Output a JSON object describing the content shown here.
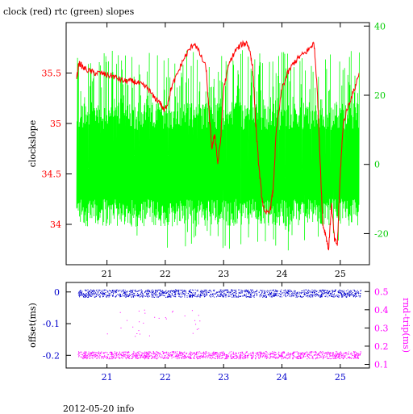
{
  "title": "clock (red) rtc (green) slopes",
  "footer": "2012-05-20 info",
  "colors": {
    "clock": "#ff0000",
    "rtc": "#00ff00",
    "offset": "#0000cc",
    "rndtrip": "#ff00ff",
    "axis": "#000000",
    "right_axis_top": "#00cc00",
    "right_axis_bottom": "#cc00cc"
  },
  "chart_data": [
    {
      "type": "line",
      "title": "clock (red) rtc (green) slopes",
      "xlabel": "",
      "x_ticks": [
        "21",
        "22",
        "23",
        "24",
        "25"
      ],
      "x_tick_values": [
        21,
        22,
        23,
        24,
        25
      ],
      "xlim": [
        20.3,
        25.5
      ],
      "ylabel": "clockslope",
      "y_ticks": [
        "34",
        "34.5",
        "35",
        "35.5"
      ],
      "y_tick_values": [
        34,
        34.5,
        35,
        35.5
      ],
      "ylim": [
        33.6,
        36.0
      ],
      "y2_ticks": [
        "-20",
        "0",
        "20",
        "40"
      ],
      "y2_tick_values": [
        -20,
        0,
        20,
        40
      ],
      "y2lim": [
        -29,
        41
      ],
      "series": [
        {
          "name": "clock",
          "axis": "left",
          "points": [
            [
              20.48,
              35.45
            ],
            [
              20.52,
              35.6
            ],
            [
              20.6,
              35.55
            ],
            [
              20.7,
              35.52
            ],
            [
              20.8,
              35.5
            ],
            [
              20.9,
              35.5
            ],
            [
              21.0,
              35.48
            ],
            [
              21.1,
              35.47
            ],
            [
              21.2,
              35.44
            ],
            [
              21.3,
              35.42
            ],
            [
              21.4,
              35.42
            ],
            [
              21.5,
              35.41
            ],
            [
              21.6,
              35.38
            ],
            [
              21.7,
              35.35
            ],
            [
              21.8,
              35.26
            ],
            [
              21.9,
              35.22
            ],
            [
              21.98,
              35.12
            ],
            [
              22.05,
              35.22
            ],
            [
              22.1,
              35.35
            ],
            [
              22.2,
              35.48
            ],
            [
              22.3,
              35.62
            ],
            [
              22.4,
              35.72
            ],
            [
              22.5,
              35.8
            ],
            [
              22.6,
              35.68
            ],
            [
              22.7,
              35.55
            ],
            [
              22.75,
              35.1
            ],
            [
              22.8,
              34.75
            ],
            [
              22.85,
              34.9
            ],
            [
              22.9,
              34.6
            ],
            [
              22.95,
              34.85
            ],
            [
              23.0,
              35.35
            ],
            [
              23.1,
              35.6
            ],
            [
              23.2,
              35.72
            ],
            [
              23.3,
              35.78
            ],
            [
              23.4,
              35.8
            ],
            [
              23.45,
              35.72
            ],
            [
              23.5,
              35.55
            ],
            [
              23.55,
              35.0
            ],
            [
              23.6,
              34.6
            ],
            [
              23.65,
              34.3
            ],
            [
              23.7,
              34.1
            ],
            [
              23.8,
              34.15
            ],
            [
              23.85,
              34.35
            ],
            [
              23.9,
              34.9
            ],
            [
              24.0,
              35.35
            ],
            [
              24.1,
              35.5
            ],
            [
              24.2,
              35.6
            ],
            [
              24.3,
              35.66
            ],
            [
              24.4,
              35.7
            ],
            [
              24.5,
              35.76
            ],
            [
              24.55,
              35.8
            ],
            [
              24.6,
              35.4
            ],
            [
              24.65,
              34.7
            ],
            [
              24.7,
              34.0
            ],
            [
              24.75,
              33.9
            ],
            [
              24.8,
              33.75
            ],
            [
              24.85,
              34.2
            ],
            [
              24.9,
              33.85
            ],
            [
              24.95,
              33.8
            ],
            [
              25.0,
              34.5
            ],
            [
              25.05,
              35.0
            ],
            [
              25.15,
              35.2
            ],
            [
              25.25,
              35.35
            ],
            [
              25.32,
              35.5
            ]
          ]
        },
        {
          "name": "rtc",
          "axis": "right",
          "envelope": {
            "x_start": 20.48,
            "x_end": 25.32,
            "center": -2,
            "inner_low": -14,
            "inner_high": 14,
            "spike_low": -25,
            "spike_high": 33
          }
        }
      ]
    },
    {
      "type": "scatter",
      "x_ticks": [
        "21",
        "22",
        "23",
        "24",
        "25"
      ],
      "x_tick_values": [
        21,
        22,
        23,
        24,
        25
      ],
      "xlim": [
        20.3,
        25.5
      ],
      "ylabel": "offset(ms)",
      "y_ticks": [
        "0",
        "-0.1",
        "-0.2"
      ],
      "y_tick_values": [
        0,
        -0.1,
        -0.2
      ],
      "ylim": [
        -0.24,
        0.03
      ],
      "y2label": "rnd-trip(ms)",
      "y2_ticks": [
        "0.1",
        "0.2",
        "0.3",
        "0.4",
        "0.5"
      ],
      "y2_tick_values": [
        0.1,
        0.2,
        0.3,
        0.4,
        0.5
      ],
      "y2lim": [
        0.08,
        0.55
      ],
      "series": [
        {
          "name": "offset",
          "axis": "left",
          "cluster": {
            "x_start": 20.5,
            "x_end": 25.35,
            "center": -0.005,
            "spread": 0.012
          }
        },
        {
          "name": "rnd-trip",
          "axis": "right",
          "cluster": {
            "x_start": 20.5,
            "x_end": 25.35,
            "center": 0.15,
            "spread": 0.02
          }
        }
      ]
    }
  ]
}
